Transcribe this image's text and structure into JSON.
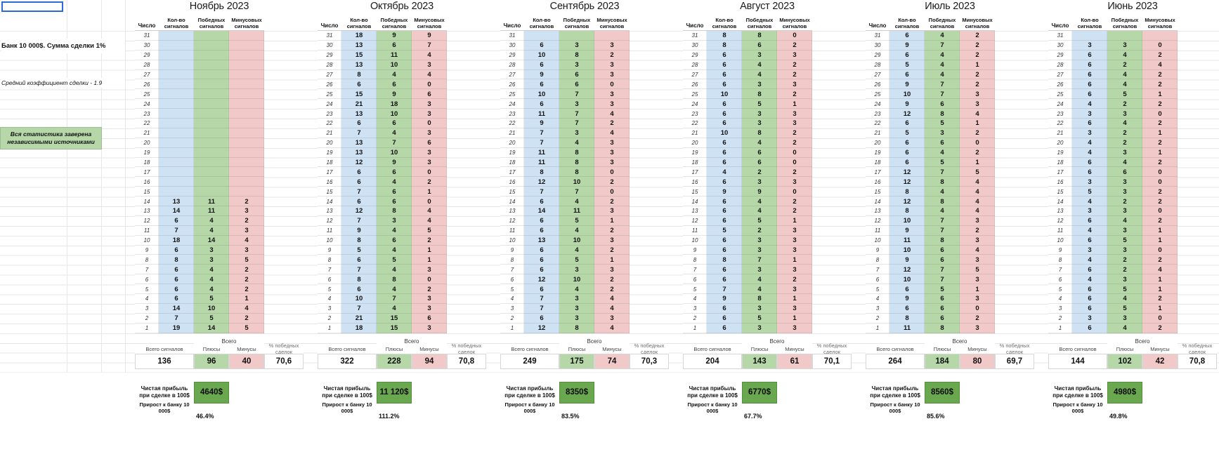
{
  "sheet": {
    "sidebar": {
      "bank_info": "Банк 10 000$. Сумма сделки 1%",
      "avg_coefficient": "Средний коэффициент сделки - 1.9",
      "verified_note": "Вся статистика заверена независимыми источниками"
    },
    "column_headers": {
      "day": "Число",
      "signals": "Кол-во сигналов",
      "wins": "Победных сигналов",
      "losses": "Минусовых сигналов"
    },
    "totals_labels": {
      "total_header": "Всего",
      "total_signals": "Всего сигналов",
      "pluses": "Плюсы",
      "minuses": "Минусы",
      "win_rate": "% победных сделок",
      "net_profit": "Чистая прибыль при сделке в 100$",
      "bank_growth": "Прирост к банку 10 000$"
    },
    "colors": {
      "column_blue": "#cfe2f3",
      "column_green": "#b6d7a8",
      "column_red": "#f2c9c9",
      "profit_green": "#6aa84f",
      "selection_blue": "#2b6cd4"
    },
    "months": [
      {
        "title": "Ноябрь 2023",
        "days": [
          [
            31,
            null,
            null,
            null
          ],
          [
            30,
            null,
            null,
            null
          ],
          [
            29,
            null,
            null,
            null
          ],
          [
            28,
            null,
            null,
            null
          ],
          [
            27,
            null,
            null,
            null
          ],
          [
            26,
            null,
            null,
            null
          ],
          [
            25,
            null,
            null,
            null
          ],
          [
            24,
            null,
            null,
            null
          ],
          [
            23,
            null,
            null,
            null
          ],
          [
            22,
            null,
            null,
            null
          ],
          [
            21,
            null,
            null,
            null
          ],
          [
            20,
            null,
            null,
            null
          ],
          [
            19,
            null,
            null,
            null
          ],
          [
            18,
            null,
            null,
            null
          ],
          [
            17,
            null,
            null,
            null
          ],
          [
            16,
            null,
            null,
            null
          ],
          [
            15,
            null,
            null,
            null
          ],
          [
            14,
            13,
            11,
            2
          ],
          [
            13,
            14,
            11,
            3
          ],
          [
            12,
            6,
            4,
            2
          ],
          [
            11,
            7,
            4,
            3
          ],
          [
            10,
            18,
            14,
            4
          ],
          [
            9,
            6,
            3,
            3
          ],
          [
            8,
            8,
            3,
            5
          ],
          [
            7,
            6,
            4,
            2
          ],
          [
            6,
            6,
            4,
            2
          ],
          [
            5,
            6,
            4,
            2
          ],
          [
            4,
            6,
            5,
            1
          ],
          [
            3,
            14,
            10,
            4
          ],
          [
            2,
            7,
            5,
            2
          ],
          [
            1,
            19,
            14,
            5
          ]
        ],
        "totals": {
          "signals": "136",
          "pluses": "96",
          "minuses": "40",
          "win_rate": "70,6"
        },
        "profit": "4640$",
        "growth": "46.4%"
      },
      {
        "title": "Октябрь 2023",
        "days": [
          [
            31,
            18,
            9,
            9
          ],
          [
            30,
            13,
            6,
            7
          ],
          [
            29,
            15,
            11,
            4
          ],
          [
            28,
            13,
            10,
            3
          ],
          [
            27,
            8,
            4,
            4
          ],
          [
            26,
            6,
            6,
            0
          ],
          [
            25,
            15,
            9,
            6
          ],
          [
            24,
            21,
            18,
            3
          ],
          [
            23,
            13,
            10,
            3
          ],
          [
            22,
            6,
            6,
            0
          ],
          [
            21,
            7,
            4,
            3
          ],
          [
            20,
            13,
            7,
            6
          ],
          [
            19,
            13,
            10,
            3
          ],
          [
            18,
            12,
            9,
            3
          ],
          [
            17,
            6,
            6,
            0
          ],
          [
            16,
            6,
            4,
            2
          ],
          [
            15,
            7,
            6,
            1
          ],
          [
            14,
            6,
            6,
            0
          ],
          [
            13,
            12,
            8,
            4
          ],
          [
            12,
            7,
            3,
            4
          ],
          [
            11,
            9,
            4,
            5
          ],
          [
            10,
            8,
            6,
            2
          ],
          [
            9,
            5,
            4,
            1
          ],
          [
            8,
            6,
            5,
            1
          ],
          [
            7,
            7,
            4,
            3
          ],
          [
            6,
            8,
            8,
            0
          ],
          [
            5,
            6,
            4,
            2
          ],
          [
            4,
            10,
            7,
            3
          ],
          [
            3,
            7,
            4,
            3
          ],
          [
            2,
            21,
            15,
            6
          ],
          [
            1,
            18,
            15,
            3
          ]
        ],
        "totals": {
          "signals": "322",
          "pluses": "228",
          "minuses": "94",
          "win_rate": "70,8"
        },
        "profit": "11 120$",
        "growth": "111.2%"
      },
      {
        "title": "Сентябрь 2023",
        "days": [
          [
            31,
            null,
            null,
            null
          ],
          [
            30,
            6,
            3,
            3
          ],
          [
            29,
            10,
            8,
            2
          ],
          [
            28,
            6,
            3,
            3
          ],
          [
            27,
            9,
            6,
            3
          ],
          [
            26,
            6,
            6,
            0
          ],
          [
            25,
            10,
            7,
            3
          ],
          [
            24,
            6,
            3,
            3
          ],
          [
            23,
            11,
            7,
            4
          ],
          [
            22,
            9,
            7,
            2
          ],
          [
            21,
            7,
            3,
            4
          ],
          [
            20,
            7,
            4,
            3
          ],
          [
            19,
            11,
            8,
            3
          ],
          [
            18,
            11,
            8,
            3
          ],
          [
            17,
            8,
            8,
            0
          ],
          [
            16,
            12,
            10,
            2
          ],
          [
            15,
            7,
            7,
            0
          ],
          [
            14,
            6,
            4,
            2
          ],
          [
            13,
            14,
            11,
            3
          ],
          [
            12,
            6,
            5,
            1
          ],
          [
            11,
            6,
            4,
            2
          ],
          [
            10,
            13,
            10,
            3
          ],
          [
            9,
            6,
            4,
            2
          ],
          [
            8,
            6,
            5,
            1
          ],
          [
            7,
            6,
            3,
            3
          ],
          [
            6,
            12,
            10,
            2
          ],
          [
            5,
            6,
            4,
            2
          ],
          [
            4,
            7,
            3,
            4
          ],
          [
            3,
            7,
            3,
            4
          ],
          [
            2,
            6,
            3,
            3
          ],
          [
            1,
            12,
            8,
            4
          ]
        ],
        "totals": {
          "signals": "249",
          "pluses": "175",
          "minuses": "74",
          "win_rate": "70,3"
        },
        "profit": "8350$",
        "growth": "83.5%"
      },
      {
        "title": "Август 2023",
        "days": [
          [
            31,
            8,
            8,
            0
          ],
          [
            30,
            8,
            6,
            2
          ],
          [
            29,
            6,
            3,
            3
          ],
          [
            28,
            6,
            4,
            2
          ],
          [
            27,
            6,
            4,
            2
          ],
          [
            26,
            6,
            3,
            3
          ],
          [
            25,
            10,
            8,
            2
          ],
          [
            24,
            6,
            5,
            1
          ],
          [
            23,
            6,
            3,
            3
          ],
          [
            22,
            6,
            3,
            3
          ],
          [
            21,
            10,
            8,
            2
          ],
          [
            20,
            6,
            4,
            2
          ],
          [
            19,
            6,
            6,
            0
          ],
          [
            18,
            6,
            6,
            0
          ],
          [
            17,
            4,
            2,
            2
          ],
          [
            16,
            6,
            3,
            3
          ],
          [
            15,
            9,
            9,
            0
          ],
          [
            14,
            6,
            4,
            2
          ],
          [
            13,
            6,
            4,
            2
          ],
          [
            12,
            6,
            5,
            1
          ],
          [
            11,
            5,
            2,
            3
          ],
          [
            10,
            6,
            3,
            3
          ],
          [
            9,
            6,
            3,
            3
          ],
          [
            8,
            8,
            7,
            1
          ],
          [
            7,
            6,
            3,
            3
          ],
          [
            6,
            6,
            4,
            2
          ],
          [
            5,
            7,
            4,
            3
          ],
          [
            4,
            9,
            8,
            1
          ],
          [
            3,
            6,
            3,
            3
          ],
          [
            2,
            6,
            5,
            1
          ],
          [
            1,
            6,
            3,
            3
          ]
        ],
        "totals": {
          "signals": "204",
          "pluses": "143",
          "minuses": "61",
          "win_rate": "70,1"
        },
        "profit": "6770$",
        "growth": "67.7%"
      },
      {
        "title": "Июль 2023",
        "days": [
          [
            31,
            6,
            4,
            2
          ],
          [
            30,
            9,
            7,
            2
          ],
          [
            29,
            6,
            4,
            2
          ],
          [
            28,
            5,
            4,
            1
          ],
          [
            27,
            6,
            4,
            2
          ],
          [
            26,
            9,
            7,
            2
          ],
          [
            25,
            10,
            7,
            3
          ],
          [
            24,
            9,
            6,
            3
          ],
          [
            23,
            12,
            8,
            4
          ],
          [
            22,
            6,
            5,
            1
          ],
          [
            21,
            5,
            3,
            2
          ],
          [
            20,
            6,
            6,
            0
          ],
          [
            19,
            6,
            4,
            2
          ],
          [
            18,
            6,
            5,
            1
          ],
          [
            17,
            12,
            7,
            5
          ],
          [
            16,
            12,
            8,
            4
          ],
          [
            15,
            8,
            4,
            4
          ],
          [
            14,
            12,
            8,
            4
          ],
          [
            13,
            8,
            4,
            4
          ],
          [
            12,
            10,
            7,
            3
          ],
          [
            11,
            9,
            7,
            2
          ],
          [
            10,
            11,
            8,
            3
          ],
          [
            9,
            10,
            6,
            4
          ],
          [
            8,
            9,
            6,
            3
          ],
          [
            7,
            12,
            7,
            5
          ],
          [
            6,
            10,
            7,
            3
          ],
          [
            5,
            6,
            5,
            1
          ],
          [
            4,
            9,
            6,
            3
          ],
          [
            3,
            6,
            6,
            0
          ],
          [
            2,
            8,
            6,
            2
          ],
          [
            1,
            11,
            8,
            3
          ]
        ],
        "totals": {
          "signals": "264",
          "pluses": "184",
          "minuses": "80",
          "win_rate": "69,7"
        },
        "profit": "8560$",
        "growth": "85.6%"
      },
      {
        "title": "Июнь 2023",
        "days": [
          [
            31,
            null,
            null,
            null
          ],
          [
            30,
            3,
            3,
            0
          ],
          [
            29,
            6,
            4,
            2
          ],
          [
            28,
            6,
            2,
            4
          ],
          [
            27,
            6,
            4,
            2
          ],
          [
            26,
            6,
            4,
            2
          ],
          [
            25,
            6,
            5,
            1
          ],
          [
            24,
            4,
            2,
            2
          ],
          [
            23,
            3,
            3,
            0
          ],
          [
            22,
            6,
            4,
            2
          ],
          [
            21,
            3,
            2,
            1
          ],
          [
            20,
            4,
            2,
            2
          ],
          [
            19,
            4,
            3,
            1
          ],
          [
            18,
            6,
            4,
            2
          ],
          [
            17,
            6,
            6,
            0
          ],
          [
            16,
            3,
            3,
            0
          ],
          [
            15,
            5,
            3,
            2
          ],
          [
            14,
            4,
            2,
            2
          ],
          [
            13,
            3,
            3,
            0
          ],
          [
            12,
            6,
            4,
            2
          ],
          [
            11,
            4,
            3,
            1
          ],
          [
            10,
            6,
            5,
            1
          ],
          [
            9,
            3,
            3,
            0
          ],
          [
            8,
            4,
            2,
            2
          ],
          [
            7,
            6,
            2,
            4
          ],
          [
            6,
            4,
            3,
            1
          ],
          [
            5,
            6,
            5,
            1
          ],
          [
            4,
            6,
            4,
            2
          ],
          [
            3,
            6,
            5,
            1
          ],
          [
            2,
            3,
            3,
            0
          ],
          [
            1,
            6,
            4,
            2
          ]
        ],
        "totals": {
          "signals": "144",
          "pluses": "102",
          "minuses": "42",
          "win_rate": "70,8"
        },
        "profit": "4980$",
        "growth": "49.8%"
      }
    ]
  }
}
